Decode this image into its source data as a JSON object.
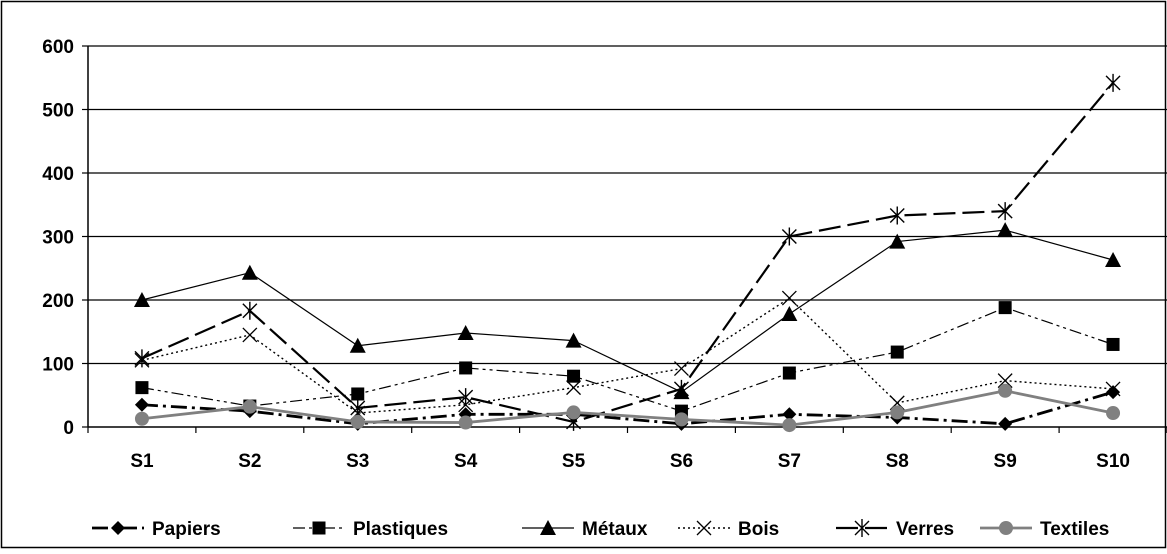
{
  "chart_data": {
    "type": "line",
    "categories": [
      "S1",
      "S2",
      "S3",
      "S4",
      "S5",
      "S6",
      "S7",
      "S8",
      "S9",
      "S10"
    ],
    "ylim": [
      0,
      600
    ],
    "yticks": [
      0,
      100,
      200,
      300,
      400,
      500,
      600
    ],
    "grid": true,
    "legend_position": "bottom",
    "series": [
      {
        "name": "Papiers",
        "marker": "diamond",
        "dash": "dash-dot",
        "color": "#000000",
        "values": [
          35,
          25,
          5,
          20,
          20,
          5,
          20,
          15,
          5,
          55
        ]
      },
      {
        "name": "Plastiques",
        "marker": "square",
        "dash": "dash-dot-dot",
        "color": "#000000",
        "values": [
          62,
          33,
          52,
          93,
          80,
          25,
          85,
          118,
          188,
          130
        ]
      },
      {
        "name": "Métaux",
        "marker": "triangle",
        "dash": "solid",
        "color": "#000000",
        "values": [
          200,
          243,
          128,
          148,
          136,
          55,
          178,
          292,
          310,
          263
        ]
      },
      {
        "name": "Bois",
        "marker": "x",
        "dash": "dotted",
        "color": "#000000",
        "values": [
          105,
          145,
          22,
          35,
          62,
          92,
          203,
          38,
          73,
          60
        ]
      },
      {
        "name": "Verres",
        "marker": "star",
        "dash": "long-dash",
        "color": "#000000",
        "values": [
          108,
          183,
          30,
          47,
          8,
          60,
          300,
          333,
          340,
          542
        ]
      },
      {
        "name": "Textiles",
        "marker": "circle",
        "dash": "solid-gray",
        "color": "#808080",
        "values": [
          13,
          32,
          8,
          7,
          23,
          12,
          3,
          23,
          57,
          22
        ]
      }
    ]
  }
}
